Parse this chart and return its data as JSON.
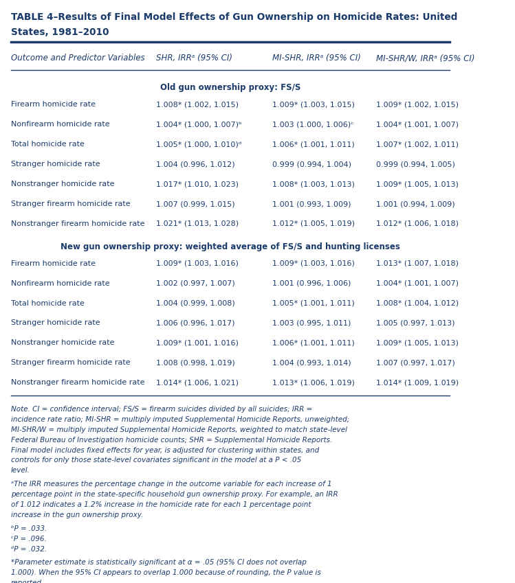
{
  "title_line1": "TABLE 4–Results of Final Model Effects of Gun Ownership on Homicide Rates: United",
  "title_line2": "States, 1981–2010",
  "title_color": "#1a3a6b",
  "header_row": [
    "Outcome and Predictor Variables",
    "SHR, IRRᵃ (95% CI)",
    "MI-SHR, IRRᵃ (95% CI)",
    "MI-SHR/W, IRRᵃ (95% CI)"
  ],
  "section1_title": "Old gun ownership proxy: FS/S",
  "section1_rows": [
    [
      "Firearm homicide rate",
      "1.008* (1.002, 1.015)",
      "1.009* (1.003, 1.015)",
      "1.009* (1.002, 1.015)"
    ],
    [
      "Nonfirearm homicide rate",
      "1.004* (1.000, 1.007)ᵇ",
      "1.003 (1.000, 1.006)ᶜ",
      "1.004* (1.001, 1.007)"
    ],
    [
      "Total homicide rate",
      "1.005* (1.000, 1.010)ᵈ",
      "1.006* (1.001, 1.011)",
      "1.007* (1.002, 1.011)"
    ],
    [
      "Stranger homicide rate",
      "1.004 (0.996, 1.012)",
      "0.999 (0.994, 1.004)",
      "0.999 (0.994, 1.005)"
    ],
    [
      "Nonstranger homicide rate",
      "1.017* (1.010, 1.023)",
      "1.008* (1.003, 1.013)",
      "1.009* (1.005, 1.013)"
    ],
    [
      "Stranger firearm homicide rate",
      "1.007 (0.999, 1.015)",
      "1.001 (0.993, 1.009)",
      "1.001 (0.994, 1.009)"
    ],
    [
      "Nonstranger firearm homicide rate",
      "1.021* (1.013, 1.028)",
      "1.012* (1.005, 1.019)",
      "1.012* (1.006, 1.018)"
    ]
  ],
  "section2_title": "New gun ownership proxy: weighted average of FS/S and hunting licenses",
  "section2_rows": [
    [
      "Firearm homicide rate",
      "1.009* (1.003, 1.016)",
      "1.009* (1.003, 1.016)",
      "1.013* (1.007, 1.018)"
    ],
    [
      "Nonfirearm homicide rate",
      "1.002 (0.997, 1.007)",
      "1.001 (0.996, 1.006)",
      "1.004* (1.001, 1.007)"
    ],
    [
      "Total homicide rate",
      "1.004 (0.999, 1.008)",
      "1.005* (1.001, 1.011)",
      "1.008* (1.004, 1.012)"
    ],
    [
      "Stranger homicide rate",
      "1.006 (0.996, 1.017)",
      "1.003 (0.995, 1.011)",
      "1.005 (0.997, 1.013)"
    ],
    [
      "Nonstranger homicide rate",
      "1.009* (1.001, 1.016)",
      "1.006* (1.001, 1.011)",
      "1.009* (1.005, 1.013)"
    ],
    [
      "Stranger firearm homicide rate",
      "1.008 (0.998, 1.019)",
      "1.004 (0.993, 1.014)",
      "1.007 (0.997, 1.017)"
    ],
    [
      "Nonstranger firearm homicide rate",
      "1.014* (1.006, 1.021)",
      "1.013* (1.006, 1.019)",
      "1.014* (1.009, 1.019)"
    ]
  ],
  "note_text": "Note. CI = confidence interval; FS/S = firearm suicides divided by all suicides; IRR = incidence rate ratio; MI-SHR = multiply imputed Supplemental Homicide Reports, unweighted; MI-SHR/W = multiply imputed Supplemental Homicide Reports, weighted to match state-level Federal Bureau of Investigation homicide counts; SHR = Supplemental Homicide Reports. Final model includes fixed effects for year, is adjusted for clustering within states, and controls for only those state-level covariates significant in the model at a P < .05 level.",
  "footnote_a": "ᵃThe IRR measures the percentage change in the outcome variable for each increase of 1 percentage point in the state-specific household gun ownership proxy. For example, an IRR of 1.012 indicates a 1.2% increase in the homicide rate for each 1 percentage point increase in the gun ownership proxy.",
  "footnote_b": "ᵇP = .033.",
  "footnote_c": "ᶜP = .096.",
  "footnote_d": "ᵈP = .032.",
  "footnote_star": "*Parameter estimate is statistically significant at α = .05 (95% CI does not overlap 1.000). When the 95% CI appears to overlap 1.000 because of rounding, the P value is reported.",
  "text_color": "#1a3a6b",
  "bg_color": "#ffffff",
  "line_color": "#1a3a6b"
}
